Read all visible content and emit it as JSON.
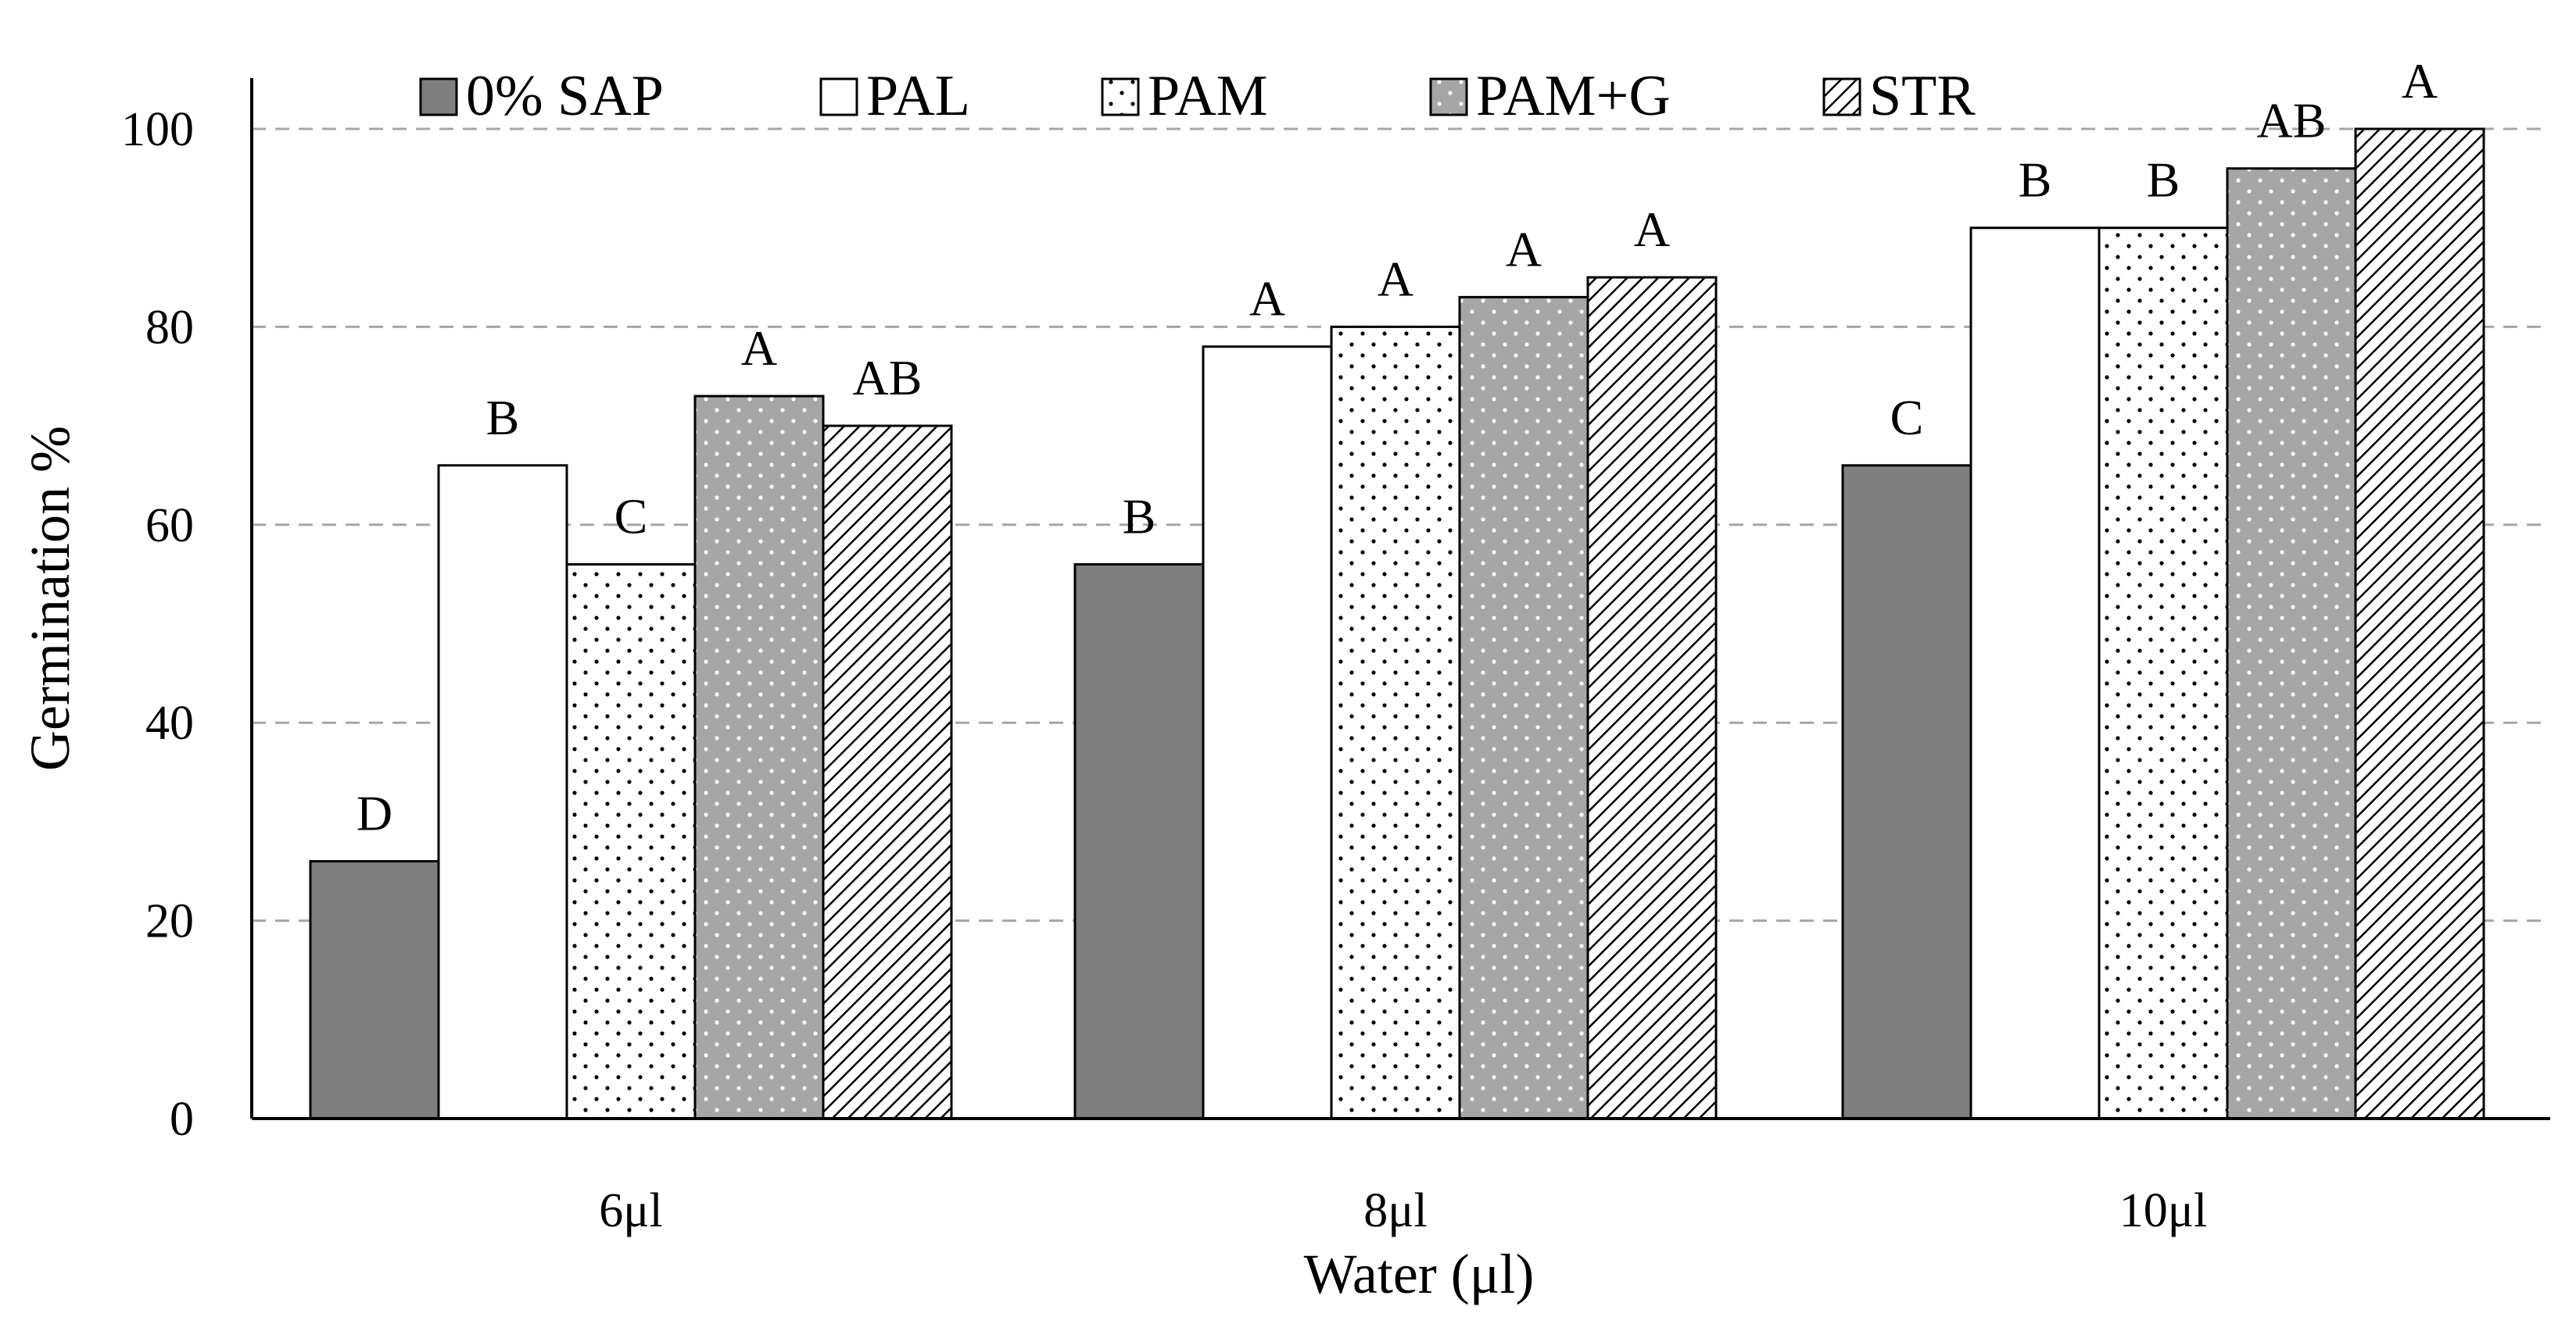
{
  "chart_data": {
    "type": "bar",
    "title": "",
    "xlabel": "Water (μl)",
    "ylabel": "Germination %",
    "ylim": [
      0,
      105
    ],
    "yticks": [
      0,
      20,
      40,
      60,
      80,
      100
    ],
    "grid": true,
    "legend_position": "top",
    "categories": [
      "6μl",
      "8μl",
      "10μl"
    ],
    "series": [
      {
        "name": "0% SAP",
        "values": [
          26,
          56,
          66
        ],
        "letters": [
          "D",
          "B",
          "C"
        ],
        "pattern": "solid-dark"
      },
      {
        "name": "PAL",
        "values": [
          66,
          78,
          90
        ],
        "letters": [
          "B",
          "A",
          "B"
        ],
        "pattern": "white"
      },
      {
        "name": "PAM",
        "values": [
          56,
          80,
          90
        ],
        "letters": [
          "C",
          "A",
          "B"
        ],
        "pattern": "dots-white"
      },
      {
        "name": "PAM+G",
        "values": [
          73,
          83,
          96
        ],
        "letters": [
          "A",
          "A",
          "AB"
        ],
        "pattern": "dots-gray"
      },
      {
        "name": "STR",
        "values": [
          70,
          85,
          100
        ],
        "letters": [
          "AB",
          "A",
          "A"
        ],
        "pattern": "hatch"
      }
    ]
  },
  "colors": {
    "dark_bar": "#7f7f7f",
    "light_bar": "#a6a6a6",
    "gridline": "#a6a6a6",
    "axis": "#000000"
  }
}
